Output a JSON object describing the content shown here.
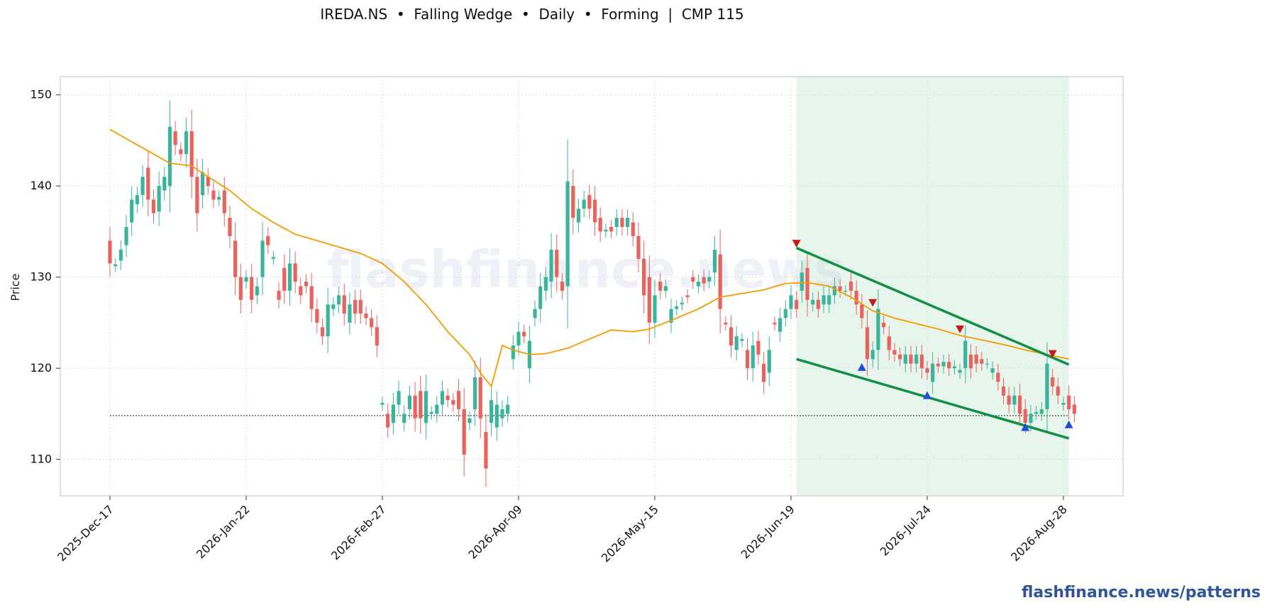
{
  "chart_data": {
    "type": "candlestick",
    "title": "IREDA.NS  •  Falling Wedge  •  Daily  •  Forming  |  CMP 115",
    "ylabel": "Price",
    "ylim": [
      106,
      152
    ],
    "yticks": [
      110,
      120,
      130,
      140,
      150
    ],
    "xticks": [
      {
        "label": "2025-Dec-17",
        "i": 0
      },
      {
        "label": "2026-Jan-22",
        "i": 25
      },
      {
        "label": "2026-Feb-27",
        "i": 50
      },
      {
        "label": "2026-Apr-09",
        "i": 75
      },
      {
        "label": "2026-May-15",
        "i": 100
      },
      {
        "label": "2026-Jun-19",
        "i": 125
      },
      {
        "label": "2026-Jul-24",
        "i": 150
      },
      {
        "label": "2026-Aug-28",
        "i": 175
      }
    ],
    "candles": [
      [
        134.0,
        131.5
      ],
      [
        131.2,
        131.4
      ],
      [
        131.8,
        133.0
      ],
      [
        133.5,
        135.5
      ],
      [
        136.0,
        138.5
      ],
      [
        138.0,
        139.0
      ],
      [
        139.0,
        141.0
      ],
      [
        142.0,
        138.5
      ],
      [
        138.5,
        137.0
      ],
      [
        137.2,
        140.0
      ],
      [
        139.5,
        141.0
      ],
      [
        140.0,
        146.5
      ],
      [
        146.0,
        144.5
      ],
      [
        144.0,
        143.5
      ],
      [
        143.5,
        146.0
      ],
      [
        146.0,
        141.0
      ],
      [
        141.0,
        137.0
      ],
      [
        139.0,
        141.5
      ],
      [
        141.0,
        140.0
      ],
      [
        139.5,
        138.5
      ],
      [
        138.5,
        138.8
      ],
      [
        139.5,
        137.0
      ],
      [
        136.5,
        134.5
      ],
      [
        134.0,
        130.0
      ],
      [
        130.0,
        127.5
      ],
      [
        129.5,
        130.0
      ],
      [
        130.0,
        127.5
      ],
      [
        128.0,
        129.0
      ],
      [
        130.0,
        134.0
      ],
      [
        134.5,
        133.5
      ],
      [
        132.0,
        132.2
      ],
      [
        128.5,
        127.5
      ],
      [
        131.0,
        128.5
      ],
      [
        128.5,
        131.5
      ],
      [
        131.5,
        129.5
      ],
      [
        129.0,
        128.0
      ],
      [
        129.5,
        129.0
      ],
      [
        129.0,
        126.5
      ],
      [
        126.5,
        125.0
      ],
      [
        124.5,
        123.5
      ],
      [
        123.5,
        127.0
      ],
      [
        126.5,
        127.0
      ],
      [
        127.0,
        128.0
      ],
      [
        128.0,
        126.0
      ],
      [
        125.0,
        127.0
      ],
      [
        127.5,
        126.0
      ],
      [
        127.5,
        126.0
      ],
      [
        126.0,
        125.5
      ],
      [
        125.5,
        124.5
      ],
      [
        124.5,
        122.5
      ],
      [
        116.0,
        116.2
      ],
      [
        115.0,
        113.5
      ],
      [
        114.0,
        116.0
      ],
      [
        116.0,
        117.5
      ],
      [
        114.0,
        115.0
      ],
      [
        115.5,
        117.0
      ],
      [
        117.0,
        114.5
      ],
      [
        117.5,
        114.5
      ],
      [
        114.0,
        117.5
      ],
      [
        115.0,
        115.2
      ],
      [
        115.0,
        116.0
      ],
      [
        116.0,
        117.5
      ],
      [
        117.0,
        116.5
      ],
      [
        116.5,
        116.0
      ],
      [
        117.5,
        115.5
      ],
      [
        115.5,
        110.5
      ],
      [
        114.0,
        114.5
      ],
      [
        115.5,
        119.0
      ],
      [
        119.0,
        114.5
      ],
      [
        113.0,
        109.0
      ],
      [
        114.0,
        116.5
      ],
      [
        113.5,
        116.0
      ],
      [
        114.5,
        115.5
      ],
      [
        115.0,
        116.0
      ],
      [
        121.0,
        122.5
      ],
      [
        122.5,
        124.0
      ],
      [
        124.0,
        123.5
      ],
      [
        120.0,
        123.0
      ],
      [
        125.5,
        126.5
      ],
      [
        126.5,
        129.0
      ],
      [
        128.5,
        130.0
      ],
      [
        129.5,
        133.0
      ],
      [
        133.0,
        130.0
      ],
      [
        129.5,
        128.5
      ],
      [
        129.0,
        140.5
      ],
      [
        140.0,
        136.5
      ],
      [
        136.0,
        137.5
      ],
      [
        137.5,
        138.5
      ],
      [
        139.0,
        137.5
      ],
      [
        138.5,
        136.0
      ],
      [
        136.5,
        135.0
      ],
      [
        135.0,
        135.2
      ],
      [
        135.5,
        135.0
      ],
      [
        135.5,
        136.5
      ],
      [
        136.5,
        135.5
      ],
      [
        135.5,
        136.5
      ],
      [
        136.0,
        134.5
      ],
      [
        134.5,
        132.0
      ],
      [
        132.0,
        128.0
      ],
      [
        130.0,
        125.0
      ],
      [
        125.0,
        128.0
      ],
      [
        129.5,
        128.5
      ],
      [
        128.5,
        129.0
      ],
      [
        125.0,
        126.5
      ],
      [
        126.5,
        126.8
      ],
      [
        127.0,
        127.2
      ],
      [
        128.0,
        127.8
      ],
      [
        130.0,
        129.5
      ],
      [
        129.0,
        129.5
      ],
      [
        130.0,
        129.3
      ],
      [
        129.5,
        130.0
      ],
      [
        130.5,
        133.0
      ],
      [
        132.5,
        126.5
      ],
      [
        125.0,
        124.8
      ],
      [
        124.5,
        122.5
      ],
      [
        122.0,
        123.5
      ],
      [
        123.0,
        123.2
      ],
      [
        122.0,
        120.0
      ],
      [
        120.0,
        122.5
      ],
      [
        123.0,
        121.5
      ],
      [
        120.5,
        118.5
      ],
      [
        119.5,
        122.0
      ],
      [
        125.0,
        124.8
      ],
      [
        124.0,
        125.5
      ],
      [
        125.5,
        126.5
      ],
      [
        126.5,
        128.0
      ],
      [
        127.5,
        126.5
      ],
      [
        128.5,
        130.5
      ],
      [
        131.0,
        127.5
      ],
      [
        127.0,
        127.5
      ],
      [
        127.5,
        126.5
      ],
      [
        127.0,
        128.0
      ],
      [
        127.0,
        128.0
      ],
      [
        128.0,
        129.0
      ],
      [
        129.0,
        128.5
      ],
      [
        128.5,
        128.5
      ],
      [
        129.5,
        128.5
      ],
      [
        128.5,
        127.0
      ],
      [
        127.0,
        125.5
      ],
      [
        124.5,
        121.0
      ],
      [
        121.0,
        122.0
      ],
      [
        122.0,
        126.5
      ],
      [
        125.0,
        124.5
      ],
      [
        123.5,
        122.0
      ],
      [
        122.0,
        121.5
      ],
      [
        121.5,
        121.0
      ],
      [
        120.5,
        121.5
      ],
      [
        121.5,
        120.5
      ],
      [
        120.5,
        121.5
      ],
      [
        121.5,
        120.0
      ],
      [
        120.0,
        119.5
      ],
      [
        118.5,
        120.5
      ],
      [
        120.5,
        120.2
      ],
      [
        120.2,
        120.7
      ],
      [
        120.7,
        120.0
      ],
      [
        120.0,
        120.2
      ],
      [
        119.5,
        119.8
      ],
      [
        120.0,
        123.0
      ],
      [
        121.5,
        120.0
      ],
      [
        121.5,
        120.5
      ],
      [
        121.0,
        120.5
      ],
      [
        120.5,
        120.5
      ],
      [
        119.5,
        120.0
      ],
      [
        119.5,
        118.5
      ],
      [
        118.0,
        117.0
      ],
      [
        117.0,
        116.0
      ],
      [
        116.0,
        117.0
      ],
      [
        117.0,
        115.0
      ],
      [
        115.5,
        114.0
      ],
      [
        114.0,
        115.0
      ],
      [
        115.0,
        115.2
      ],
      [
        115.0,
        115.5
      ],
      [
        115.5,
        120.5
      ],
      [
        119.0,
        118.0
      ],
      [
        118.0,
        117.0
      ],
      [
        116.0,
        116.2
      ],
      [
        117.0,
        115.5
      ],
      [
        116.0,
        115.0
      ]
    ],
    "ma_points": [
      [
        0,
        146.2
      ],
      [
        8,
        143.5
      ],
      [
        11,
        142.5
      ],
      [
        15,
        142.2
      ],
      [
        18,
        141.0
      ],
      [
        22,
        139.5
      ],
      [
        26,
        137.5
      ],
      [
        30,
        136.0
      ],
      [
        34,
        134.7
      ],
      [
        38,
        134.0
      ],
      [
        42,
        133.3
      ],
      [
        46,
        132.6
      ],
      [
        50,
        131.5
      ],
      [
        54,
        129.5
      ],
      [
        58,
        127.0
      ],
      [
        62,
        124.0
      ],
      [
        66,
        121.5
      ],
      [
        68,
        119.5
      ],
      [
        70,
        118.0
      ],
      [
        72,
        122.5
      ],
      [
        74,
        122.0
      ],
      [
        77,
        121.5
      ],
      [
        80,
        121.6
      ],
      [
        84,
        122.2
      ],
      [
        88,
        123.2
      ],
      [
        92,
        124.2
      ],
      [
        96,
        124.0
      ],
      [
        99,
        124.3
      ],
      [
        104,
        125.5
      ],
      [
        108,
        126.5
      ],
      [
        112,
        127.8
      ],
      [
        116,
        128.2
      ],
      [
        120,
        128.6
      ],
      [
        124,
        129.3
      ],
      [
        128,
        129.4
      ],
      [
        132,
        129.0
      ],
      [
        136,
        127.8
      ],
      [
        140,
        126.3
      ],
      [
        144,
        125.5
      ],
      [
        148,
        124.9
      ],
      [
        152,
        124.3
      ],
      [
        156,
        123.6
      ],
      [
        160,
        123.1
      ],
      [
        164,
        122.6
      ],
      [
        168,
        122.0
      ],
      [
        172,
        121.5
      ],
      [
        176,
        121.0
      ]
    ],
    "reference_line": {
      "y": 114.8,
      "from_i": 0,
      "to_i": 176
    },
    "pattern_region": {
      "from_i": 126,
      "to_i": 176
    },
    "upper_trendline": [
      [
        126,
        133.2
      ],
      [
        176,
        120.4
      ]
    ],
    "lower_trendline": [
      [
        126,
        121.0
      ],
      [
        176,
        112.3
      ]
    ],
    "swing_highs": [
      [
        126,
        133.7
      ],
      [
        140,
        127.2
      ],
      [
        156,
        124.3
      ],
      [
        173,
        121.6
      ]
    ],
    "swing_lows": [
      [
        138,
        120.1
      ],
      [
        150,
        117.0
      ],
      [
        168,
        113.5
      ],
      [
        176,
        113.8
      ]
    ],
    "colors": {
      "up": "#3bb49c",
      "down": "#e8625e",
      "ma": "#f59b00",
      "trend": "#119044",
      "region": "#e8f5ec",
      "high_marker": "#c71b1b",
      "low_marker": "#1f4fd8",
      "grid": "#dddddd",
      "watermark": "#c9d3e6"
    },
    "watermark": "flashfinance.news"
  },
  "footer": "flashfinance.news/patterns"
}
